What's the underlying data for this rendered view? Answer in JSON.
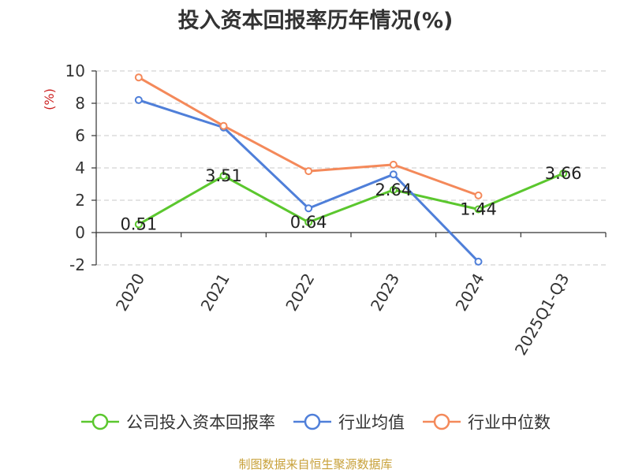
{
  "chart_data": {
    "type": "line",
    "title": "投入资本回报率历年情况(%)",
    "ylabel": "(%)",
    "xlabel": "",
    "categories": [
      "2020",
      "2021",
      "2022",
      "2023",
      "2024",
      "2025Q1-Q3"
    ],
    "ylim": [
      -2,
      10
    ],
    "yticks": [
      -2,
      0,
      2,
      4,
      6,
      8,
      10
    ],
    "grid": true,
    "legend_position": "bottom",
    "series": [
      {
        "name": "公司投入资本回报率",
        "color": "#5bc72e",
        "values": [
          0.51,
          3.51,
          0.64,
          2.64,
          1.44,
          3.66
        ],
        "labels": [
          "0.51",
          "3.51",
          "0.64",
          "2.64",
          "1.44",
          "3.66"
        ]
      },
      {
        "name": "行业均值",
        "color": "#4f7fd9",
        "values": [
          8.2,
          6.5,
          1.5,
          3.6,
          -1.8,
          null
        ]
      },
      {
        "name": "行业中位数",
        "color": "#f4895a",
        "values": [
          9.6,
          6.6,
          3.8,
          4.2,
          2.3,
          null
        ]
      }
    ]
  },
  "source": "制图数据来自恒生聚源数据库"
}
